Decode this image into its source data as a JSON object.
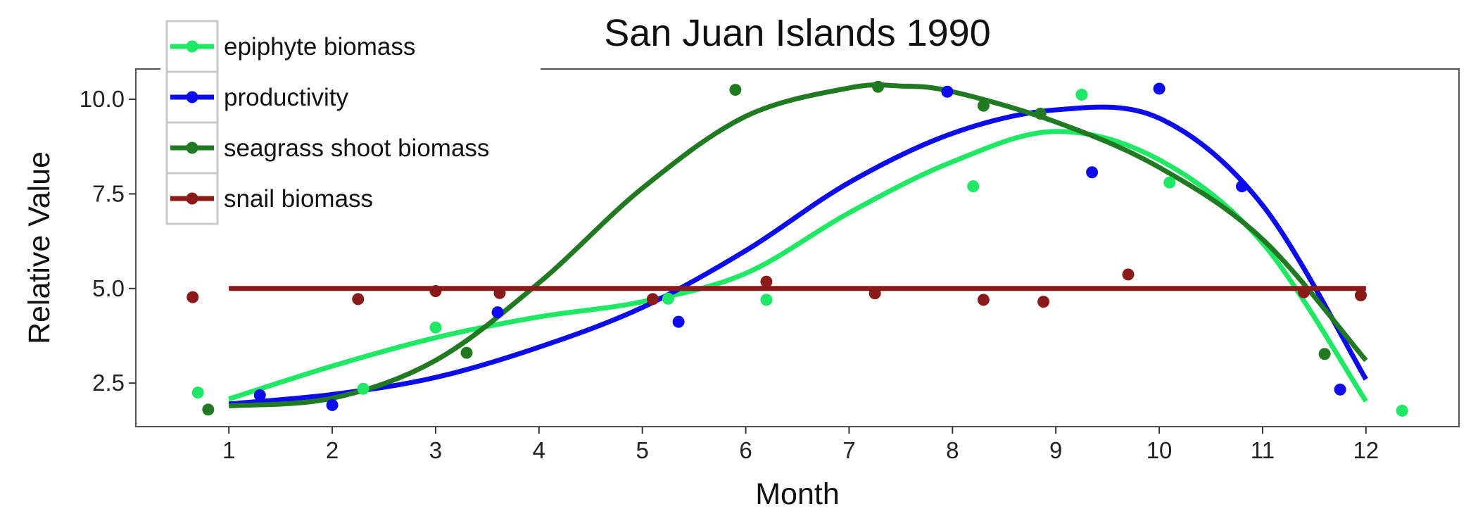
{
  "chart_data": {
    "type": "scatter",
    "title": "San Juan Islands 1990",
    "xlabel": "Month",
    "ylabel": "Relative Value",
    "xlim": [
      0.1,
      12.9
    ],
    "ylim": [
      1.35,
      10.8
    ],
    "x_ticks": [
      1,
      2,
      3,
      4,
      5,
      6,
      7,
      8,
      9,
      10,
      11,
      12
    ],
    "x_tick_labels": [
      "1",
      "2",
      "3",
      "4",
      "5",
      "6",
      "7",
      "8",
      "9",
      "10",
      "11",
      "12"
    ],
    "y_ticks": [
      2.5,
      5.0,
      7.5,
      10.0
    ],
    "y_tick_labels": [
      "2.5",
      "5.0",
      "7.5",
      "10.0"
    ],
    "grid": false,
    "legend_position": "top-left",
    "series": [
      {
        "name": "epiphyte biomass",
        "color": "#1fe864",
        "points": [
          {
            "x": 0.7,
            "y": 2.25
          },
          {
            "x": 2.3,
            "y": 2.35
          },
          {
            "x": 3.0,
            "y": 3.97
          },
          {
            "x": 5.25,
            "y": 4.73
          },
          {
            "x": 6.2,
            "y": 4.7
          },
          {
            "x": 8.2,
            "y": 7.7
          },
          {
            "x": 9.25,
            "y": 10.12
          },
          {
            "x": 10.1,
            "y": 7.8
          },
          {
            "x": 12.35,
            "y": 1.77
          }
        ],
        "curve": [
          {
            "x": 1,
            "y": 2.08
          },
          {
            "x": 2,
            "y": 2.95
          },
          {
            "x": 3,
            "y": 3.7
          },
          {
            "x": 4,
            "y": 4.25
          },
          {
            "x": 5,
            "y": 4.65
          },
          {
            "x": 6,
            "y": 5.4
          },
          {
            "x": 7,
            "y": 7.0
          },
          {
            "x": 8,
            "y": 8.35
          },
          {
            "x": 9,
            "y": 9.15
          },
          {
            "x": 10,
            "y": 8.4
          },
          {
            "x": 11,
            "y": 6.2
          },
          {
            "x": 12,
            "y": 2.02
          }
        ]
      },
      {
        "name": "productivity",
        "color": "#0b0bed",
        "points": [
          {
            "x": 1.3,
            "y": 2.18
          },
          {
            "x": 2.0,
            "y": 1.92
          },
          {
            "x": 3.6,
            "y": 4.37
          },
          {
            "x": 5.35,
            "y": 4.12
          },
          {
            "x": 7.95,
            "y": 10.2
          },
          {
            "x": 9.35,
            "y": 8.07
          },
          {
            "x": 10.0,
            "y": 10.28
          },
          {
            "x": 10.8,
            "y": 7.7
          },
          {
            "x": 11.75,
            "y": 2.33
          }
        ],
        "curve": [
          {
            "x": 1,
            "y": 1.95
          },
          {
            "x": 2,
            "y": 2.2
          },
          {
            "x": 3,
            "y": 2.65
          },
          {
            "x": 4,
            "y": 3.45
          },
          {
            "x": 5,
            "y": 4.5
          },
          {
            "x": 6,
            "y": 6.0
          },
          {
            "x": 7,
            "y": 7.8
          },
          {
            "x": 8,
            "y": 9.1
          },
          {
            "x": 9,
            "y": 9.72
          },
          {
            "x": 10,
            "y": 9.5
          },
          {
            "x": 11,
            "y": 7.2
          },
          {
            "x": 12,
            "y": 2.6
          }
        ]
      },
      {
        "name": "seagrass shoot biomass",
        "color": "#217a21",
        "points": [
          {
            "x": 0.8,
            "y": 1.8
          },
          {
            "x": 3.3,
            "y": 3.3
          },
          {
            "x": 5.9,
            "y": 10.25
          },
          {
            "x": 7.28,
            "y": 10.33
          },
          {
            "x": 8.3,
            "y": 9.83
          },
          {
            "x": 8.85,
            "y": 9.62
          },
          {
            "x": 11.6,
            "y": 3.27
          }
        ],
        "curve": [
          {
            "x": 1,
            "y": 1.9
          },
          {
            "x": 2,
            "y": 2.1
          },
          {
            "x": 3,
            "y": 3.1
          },
          {
            "x": 4,
            "y": 5.15
          },
          {
            "x": 5,
            "y": 7.65
          },
          {
            "x": 6,
            "y": 9.55
          },
          {
            "x": 7,
            "y": 10.3
          },
          {
            "x": 7.5,
            "y": 10.35
          },
          {
            "x": 8,
            "y": 10.2
          },
          {
            "x": 9,
            "y": 9.4
          },
          {
            "x": 10,
            "y": 8.2
          },
          {
            "x": 11,
            "y": 6.3
          },
          {
            "x": 12,
            "y": 3.1
          }
        ]
      },
      {
        "name": "snail biomass",
        "color": "#8b1a1a",
        "points": [
          {
            "x": 0.65,
            "y": 4.77
          },
          {
            "x": 2.25,
            "y": 4.72
          },
          {
            "x": 3.0,
            "y": 4.93
          },
          {
            "x": 3.62,
            "y": 4.88
          },
          {
            "x": 5.1,
            "y": 4.72
          },
          {
            "x": 6.2,
            "y": 5.18
          },
          {
            "x": 7.25,
            "y": 4.87
          },
          {
            "x": 8.3,
            "y": 4.7
          },
          {
            "x": 8.88,
            "y": 4.65
          },
          {
            "x": 9.7,
            "y": 5.37
          },
          {
            "x": 11.4,
            "y": 4.9
          },
          {
            "x": 11.95,
            "y": 4.82
          }
        ],
        "curve": [
          {
            "x": 1,
            "y": 5.0
          },
          {
            "x": 12,
            "y": 5.0
          }
        ]
      }
    ]
  }
}
